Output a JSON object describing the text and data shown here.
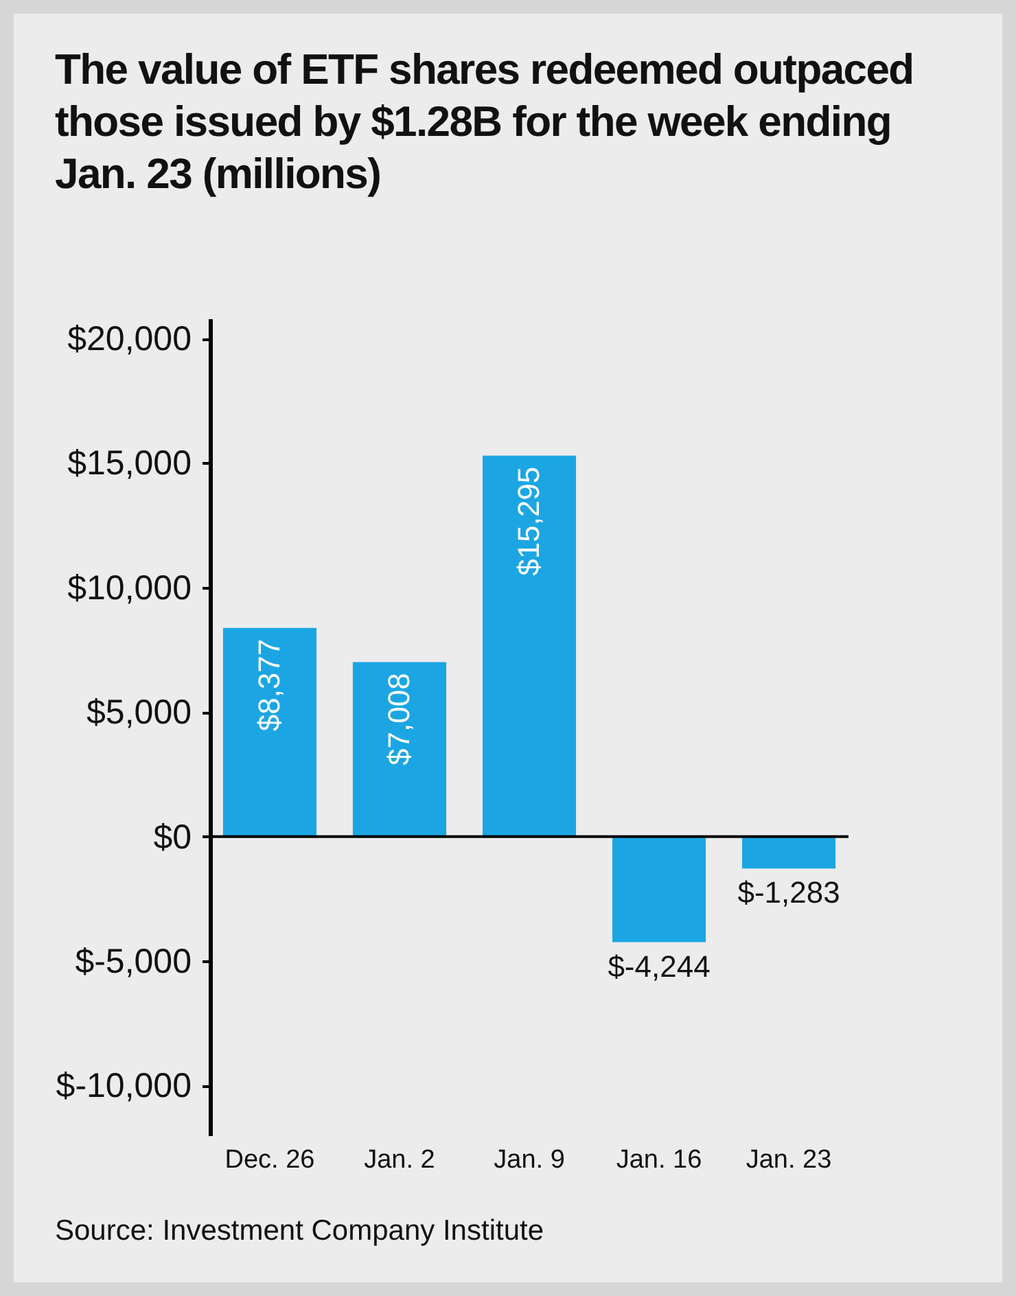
{
  "chart_data": {
    "type": "bar",
    "title": "The value of ETF shares redeemed outpaced those issued by $1.28B for the week ending Jan. 23 (millions)",
    "categories": [
      "Dec. 26",
      "Jan. 2",
      "Jan. 9",
      "Jan. 16",
      "Jan. 23"
    ],
    "values": [
      8377,
      7008,
      15295,
      -4244,
      -1283
    ],
    "value_labels": [
      "$8,377",
      "$7,008",
      "$15,295",
      "$-4,244",
      "$-1,283"
    ],
    "color": "#1ba6e3",
    "ylim": [
      -12000,
      20800
    ],
    "yticks": [
      {
        "value": -10000,
        "label": "$-10,000"
      },
      {
        "value": -5000,
        "label": "$-5,000"
      },
      {
        "value": 0,
        "label": "$0"
      },
      {
        "value": 5000,
        "label": "$5,000"
      },
      {
        "value": 10000,
        "label": "$10,000"
      },
      {
        "value": 15000,
        "label": "$15,000"
      },
      {
        "value": 20000,
        "label": "$20,000"
      }
    ],
    "ref_lines": [
      {
        "axis": "y",
        "value": 0,
        "label": null,
        "color": "#000000"
      }
    ],
    "annotations": [
      "Source:  Investment Company Institute"
    ]
  }
}
